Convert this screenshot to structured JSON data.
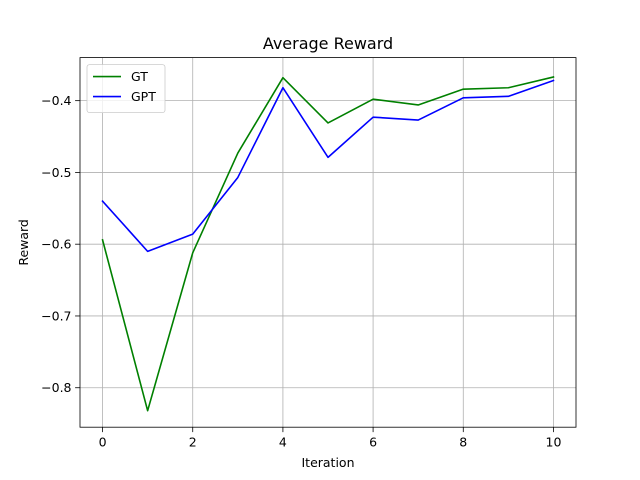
{
  "chart_data": {
    "type": "line",
    "title": "Average Reward",
    "xlabel": "Iteration",
    "ylabel": "Reward",
    "x": [
      0,
      1,
      2,
      3,
      4,
      5,
      6,
      7,
      8,
      9,
      10
    ],
    "xlim": [
      -0.5,
      10.5
    ],
    "ylim": [
      -0.855,
      -0.34
    ],
    "xticks": [
      0,
      2,
      4,
      6,
      8,
      10
    ],
    "xtick_labels": [
      "0",
      "2",
      "4",
      "6",
      "8",
      "10"
    ],
    "yticks": [
      -0.8,
      -0.7,
      -0.6,
      -0.5,
      -0.4
    ],
    "ytick_labels": [
      "−0.8",
      "−0.7",
      "−0.6",
      "−0.5",
      "−0.4"
    ],
    "grid": true,
    "legend_position": "top-left",
    "series": [
      {
        "name": "GT",
        "color": "#008000",
        "values": [
          -0.594,
          -0.832,
          -0.612,
          -0.473,
          -0.368,
          -0.431,
          -0.398,
          -0.406,
          -0.384,
          -0.382,
          -0.367
        ]
      },
      {
        "name": "GPT",
        "color": "#0000ff",
        "values": [
          -0.54,
          -0.61,
          -0.586,
          -0.507,
          -0.382,
          -0.479,
          -0.423,
          -0.427,
          -0.396,
          -0.394,
          -0.372
        ]
      }
    ]
  }
}
